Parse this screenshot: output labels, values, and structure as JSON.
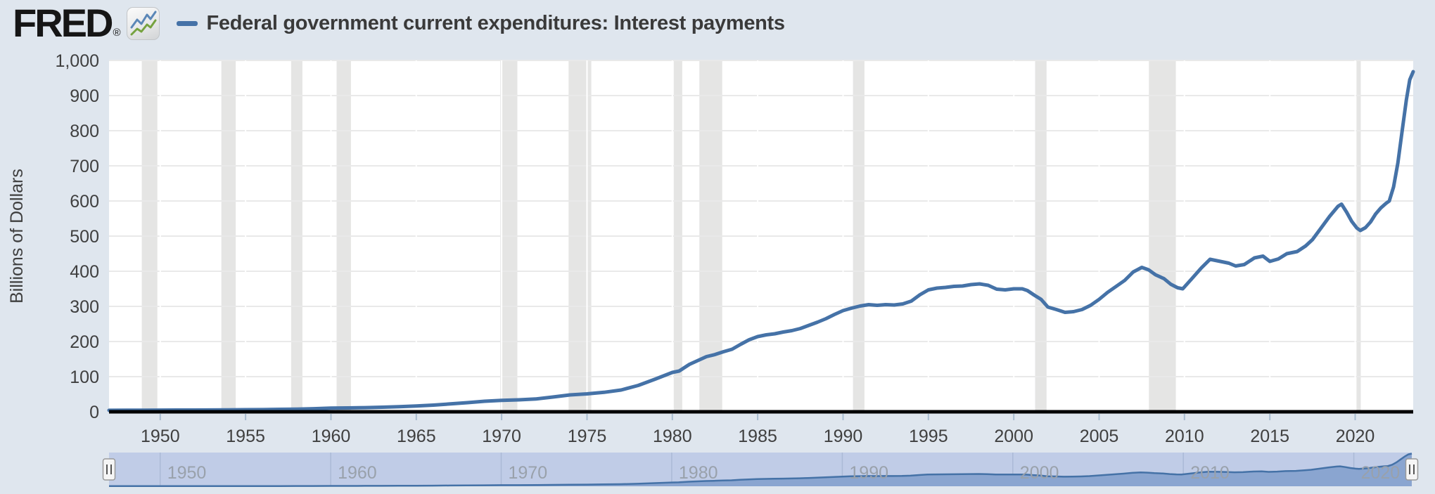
{
  "header": {
    "logo_text": "FRED",
    "registered_mark": "®",
    "series_title": "Federal government current expenditures: Interest payments"
  },
  "colors": {
    "page_background": "#dfe6ee",
    "plot_background": "#ffffff",
    "line": "#4572a7",
    "recession_band": "#e5e5e4",
    "gridline": "#e9e9e9",
    "vertical_gridline": "#ffffff",
    "x_axis": "#000000",
    "x_tick": "#a9bdd1",
    "tick_text": "#3f3f3f",
    "nav_mask": "#c0cce7",
    "nav_area": "#8aa5d0",
    "nav_grid": "#abb9d6",
    "nav_label": "#99a1ab",
    "handle_fill": "#f5f5f5",
    "handle_border": "#999999",
    "handle_grip": "#555555",
    "icon_blue": "#5b87b7",
    "icon_green": "#76a23f"
  },
  "chart_data": {
    "type": "line",
    "title": "Federal government current expenditures: Interest payments",
    "xlabel": "",
    "ylabel": "Billions of Dollars",
    "legend": [
      "Federal government current expenditures: Interest payments"
    ],
    "legend_position": "top-left",
    "grid": true,
    "line_color": "#4572a7",
    "x_domain": [
      1947,
      2023.4
    ],
    "ylim": [
      0,
      1000
    ],
    "x_ticks": [
      1950,
      1955,
      1960,
      1965,
      1970,
      1975,
      1980,
      1985,
      1990,
      1995,
      2000,
      2005,
      2010,
      2015,
      2020
    ],
    "y_ticks": [
      0,
      100,
      200,
      300,
      400,
      500,
      600,
      700,
      800,
      900,
      1000
    ],
    "y_tick_labels": [
      "0",
      "100",
      "200",
      "300",
      "400",
      "500",
      "600",
      "700",
      "800",
      "900",
      "1,000"
    ],
    "recession_bands": [
      [
        1948.92,
        1949.83
      ],
      [
        1953.58,
        1954.42
      ],
      [
        1957.67,
        1958.33
      ],
      [
        1960.33,
        1961.17
      ],
      [
        1969.92,
        1970.92
      ],
      [
        1973.92,
        1975.25
      ],
      [
        1980.08,
        1980.58
      ],
      [
        1981.58,
        1982.92
      ],
      [
        1990.58,
        1991.25
      ],
      [
        2001.25,
        2001.92
      ],
      [
        2007.92,
        2009.5
      ],
      [
        2020.08,
        2020.33
      ]
    ],
    "series": [
      {
        "name": "Federal government current expenditures: Interest payments",
        "units": "Billions of Dollars",
        "points": [
          [
            1947,
            4.2
          ],
          [
            1948,
            4.4
          ],
          [
            1949,
            4.6
          ],
          [
            1950,
            4.8
          ],
          [
            1951,
            4.9
          ],
          [
            1952,
            5.1
          ],
          [
            1953,
            5.3
          ],
          [
            1954,
            5.6
          ],
          [
            1955,
            5.9
          ],
          [
            1956,
            6.2
          ],
          [
            1957,
            6.9
          ],
          [
            1958,
            7.4
          ],
          [
            1959,
            8.7
          ],
          [
            1960,
            10.4
          ],
          [
            1961,
            10.9
          ],
          [
            1962,
            11.8
          ],
          [
            1963,
            13
          ],
          [
            1964,
            14.5
          ],
          [
            1965,
            16.5
          ],
          [
            1966,
            19
          ],
          [
            1967,
            22.5
          ],
          [
            1968,
            26
          ],
          [
            1969,
            30
          ],
          [
            1970,
            32.5
          ],
          [
            1971,
            34
          ],
          [
            1972,
            36.5
          ],
          [
            1973,
            42
          ],
          [
            1974,
            48
          ],
          [
            1975,
            51
          ],
          [
            1976,
            55.5
          ],
          [
            1977,
            62
          ],
          [
            1978,
            75
          ],
          [
            1979,
            93
          ],
          [
            1980,
            112
          ],
          [
            1980.4,
            116
          ],
          [
            1981,
            135
          ],
          [
            1981.5,
            146
          ],
          [
            1982,
            157
          ],
          [
            1982.5,
            163
          ],
          [
            1983,
            171
          ],
          [
            1983.5,
            178
          ],
          [
            1984,
            192
          ],
          [
            1984.5,
            205
          ],
          [
            1985,
            214
          ],
          [
            1985.5,
            219
          ],
          [
            1986,
            222
          ],
          [
            1986.5,
            227
          ],
          [
            1987,
            231
          ],
          [
            1987.5,
            237
          ],
          [
            1988,
            246
          ],
          [
            1988.5,
            255
          ],
          [
            1989,
            265
          ],
          [
            1989.5,
            277
          ],
          [
            1990,
            288
          ],
          [
            1990.5,
            295
          ],
          [
            1991,
            301
          ],
          [
            1991.5,
            305
          ],
          [
            1992,
            303
          ],
          [
            1992.5,
            305
          ],
          [
            1993,
            304
          ],
          [
            1993.5,
            307
          ],
          [
            1994,
            315
          ],
          [
            1994.5,
            333
          ],
          [
            1995,
            347
          ],
          [
            1995.5,
            352
          ],
          [
            1996,
            354
          ],
          [
            1996.5,
            357
          ],
          [
            1997,
            358
          ],
          [
            1997.5,
            362
          ],
          [
            1998,
            364
          ],
          [
            1998.5,
            360
          ],
          [
            1999,
            349
          ],
          [
            1999.5,
            347
          ],
          [
            2000,
            350
          ],
          [
            2000.5,
            350
          ],
          [
            2000.8,
            345
          ],
          [
            2001.2,
            332
          ],
          [
            2001.6,
            320
          ],
          [
            2002,
            298
          ],
          [
            2002.5,
            291
          ],
          [
            2003,
            283
          ],
          [
            2003.5,
            285
          ],
          [
            2004,
            291
          ],
          [
            2004.5,
            303
          ],
          [
            2005,
            320
          ],
          [
            2005.5,
            340
          ],
          [
            2006,
            357
          ],
          [
            2006.5,
            374
          ],
          [
            2007,
            398
          ],
          [
            2007.5,
            411
          ],
          [
            2007.9,
            404
          ],
          [
            2008.3,
            390
          ],
          [
            2008.8,
            379
          ],
          [
            2009.2,
            363
          ],
          [
            2009.6,
            353
          ],
          [
            2009.9,
            350
          ],
          [
            2010.4,
            377
          ],
          [
            2011,
            410
          ],
          [
            2011.5,
            434
          ],
          [
            2012,
            429
          ],
          [
            2012.6,
            423
          ],
          [
            2013,
            415
          ],
          [
            2013.5,
            419
          ],
          [
            2014.1,
            438
          ],
          [
            2014.6,
            443
          ],
          [
            2015,
            428
          ],
          [
            2015.5,
            435
          ],
          [
            2016,
            450
          ],
          [
            2016.6,
            456
          ],
          [
            2017.1,
            472
          ],
          [
            2017.5,
            490
          ],
          [
            2018,
            523
          ],
          [
            2018.5,
            556
          ],
          [
            2019,
            585
          ],
          [
            2019.2,
            591
          ],
          [
            2019.5,
            568
          ],
          [
            2019.8,
            542
          ],
          [
            2020.1,
            523
          ],
          [
            2020.3,
            516
          ],
          [
            2020.6,
            524
          ],
          [
            2020.9,
            540
          ],
          [
            2021.2,
            563
          ],
          [
            2021.5,
            580
          ],
          [
            2021.8,
            593
          ],
          [
            2022,
            600
          ],
          [
            2022.25,
            640
          ],
          [
            2022.5,
            708
          ],
          [
            2022.75,
            798
          ],
          [
            2023,
            888
          ],
          [
            2023.2,
            945
          ],
          [
            2023.4,
            968
          ]
        ]
      }
    ]
  },
  "navigator": {
    "decade_ticks": [
      1950,
      1960,
      1970,
      1980,
      1990,
      2000,
      2010,
      2020
    ],
    "decade_labels": [
      "1950",
      "1960",
      "1970",
      "1980",
      "1990",
      "2000",
      "2010",
      "2020"
    ]
  }
}
